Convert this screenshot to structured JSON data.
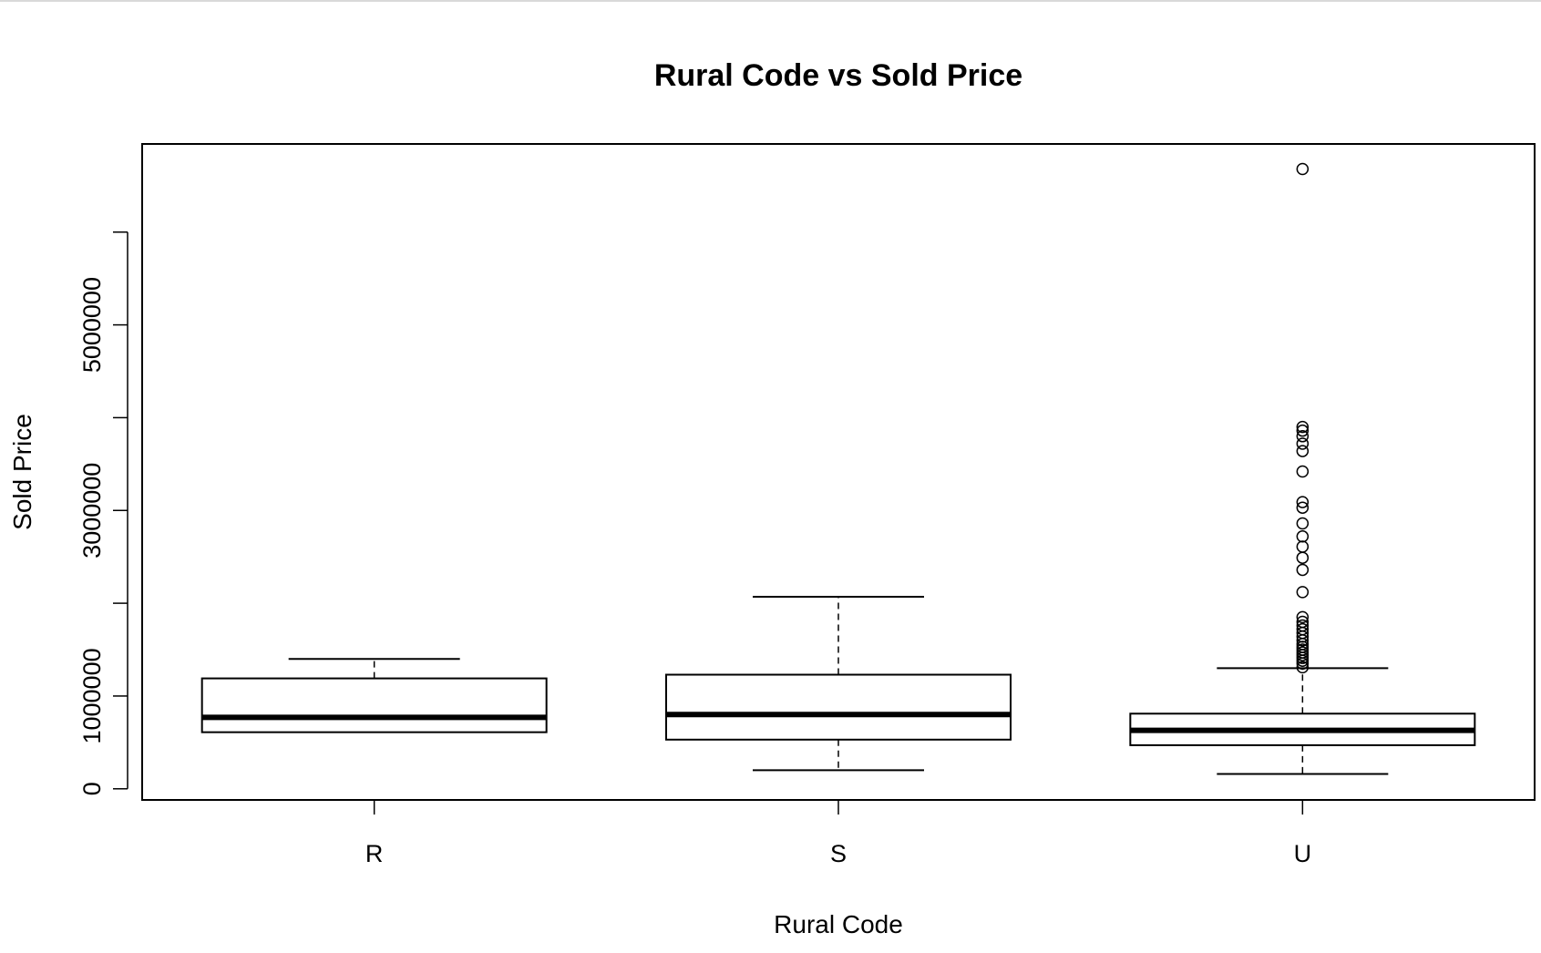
{
  "chart_data": {
    "type": "boxplot",
    "title": "Rural Code vs Sold Price",
    "xlabel": "Rural Code",
    "ylabel": "Sold Price",
    "ylim": [
      -120000,
      6950000
    ],
    "y_ticks": [
      0,
      1000000,
      2000000,
      3000000,
      4000000,
      5000000,
      6000000
    ],
    "y_tick_labels": [
      "0",
      "1000000",
      "",
      "3000000",
      "",
      "5000000",
      ""
    ],
    "categories": [
      "R",
      "S",
      "U"
    ],
    "boxes": [
      {
        "category": "R",
        "whisker_low": 610000,
        "q1": 610000,
        "median": 770000,
        "q3": 1190000,
        "whisker_high": 1400000,
        "outliers": []
      },
      {
        "category": "S",
        "whisker_low": 200000,
        "q1": 530000,
        "median": 800000,
        "q3": 1230000,
        "whisker_high": 2070000,
        "outliers": []
      },
      {
        "category": "U",
        "whisker_low": 160000,
        "q1": 470000,
        "median": 630000,
        "q3": 810000,
        "whisker_high": 1300000,
        "outliers": [
          1310000,
          1350000,
          1380000,
          1410000,
          1440000,
          1470000,
          1500000,
          1530000,
          1560000,
          1600000,
          1640000,
          1680000,
          1720000,
          1760000,
          1800000,
          1850000,
          2120000,
          2360000,
          2490000,
          2610000,
          2720000,
          2860000,
          3030000,
          3090000,
          3420000,
          3640000,
          3720000,
          3800000,
          3860000,
          3900000,
          6680000
        ]
      }
    ],
    "grid": false,
    "legend": "none"
  }
}
